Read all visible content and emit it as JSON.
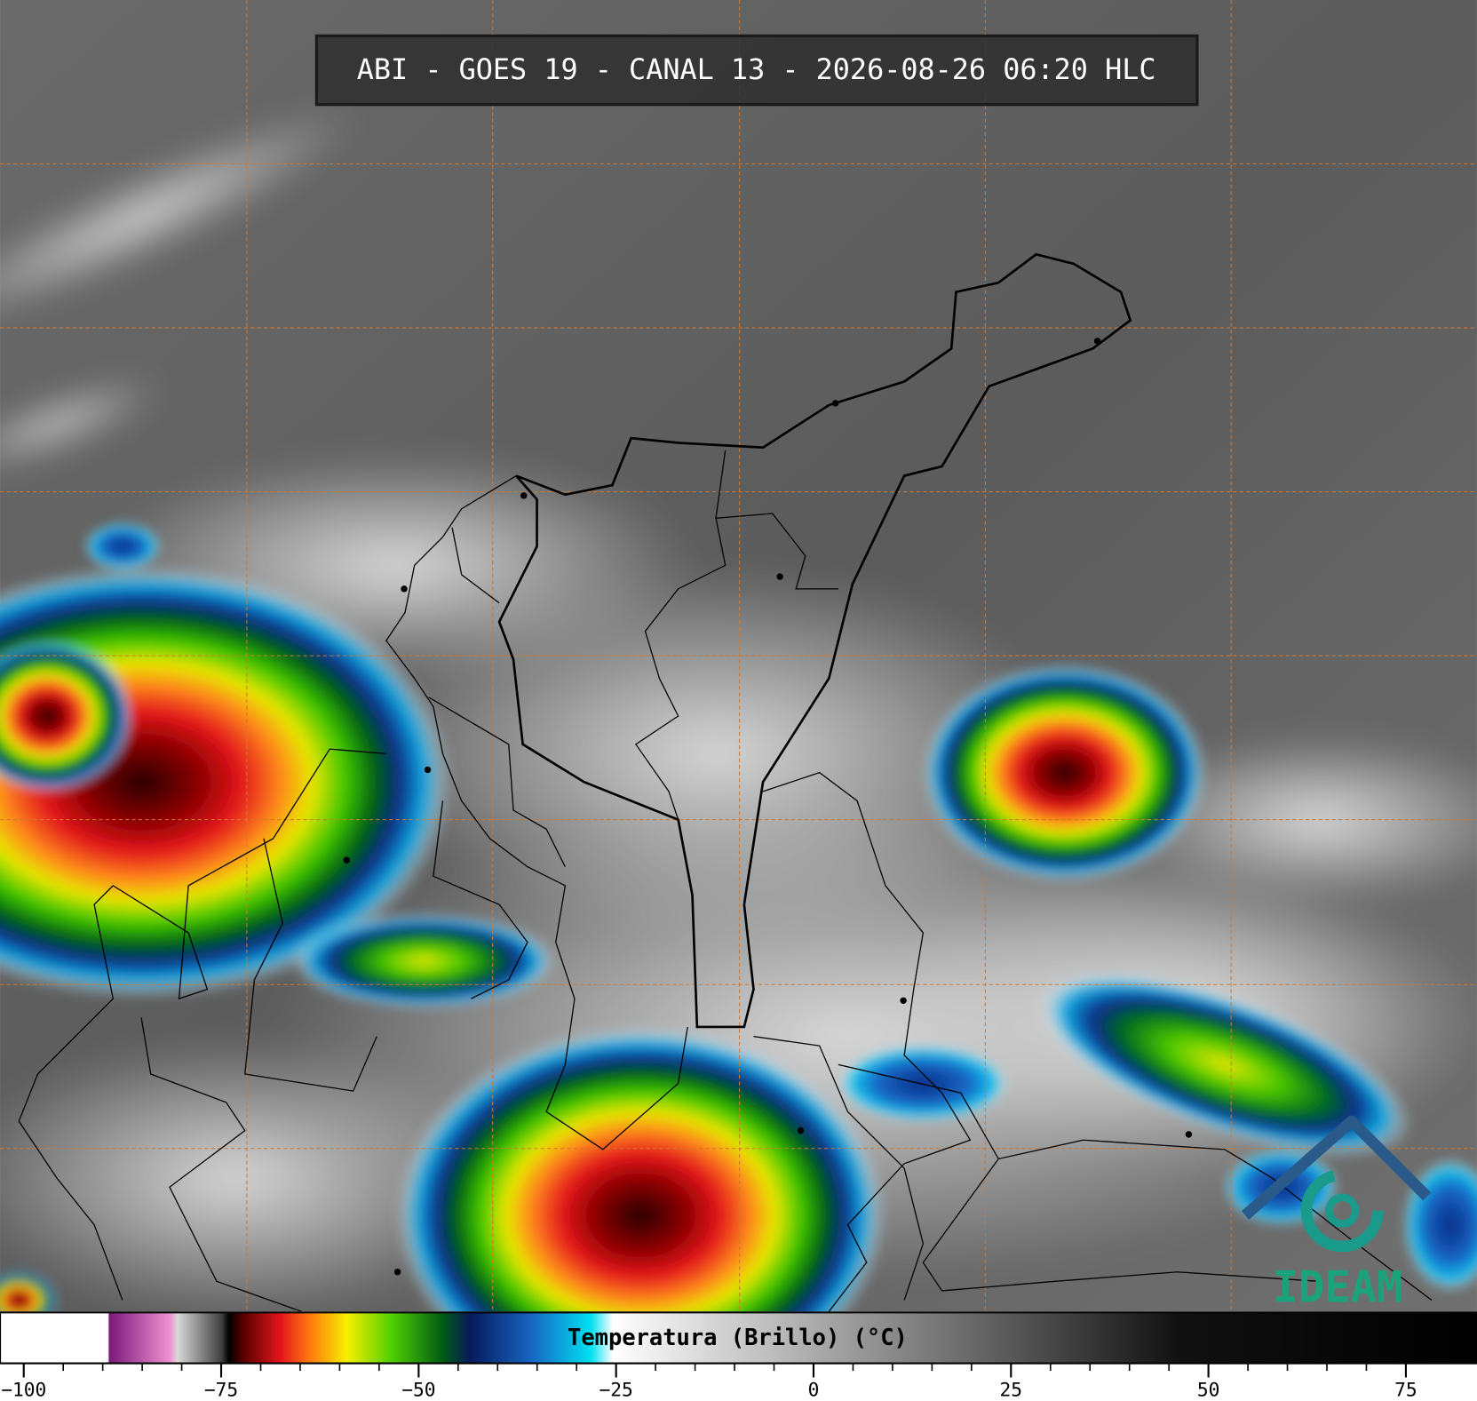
{
  "title": "ABI - GOES 19 - CANAL 13 - 2026-08-26 06:20 HLC",
  "logo": "IDEAM",
  "colorbar": {
    "label": "Temperatura (Brillo) (°C)",
    "xlim": [
      -103,
      84
    ],
    "ticks": [
      {
        "value": -100,
        "label": "−100"
      },
      {
        "value": -75,
        "label": "−75"
      },
      {
        "value": -50,
        "label": "−50"
      },
      {
        "value": -25,
        "label": "−25"
      },
      0,
      25,
      50,
      75
    ]
  }
}
